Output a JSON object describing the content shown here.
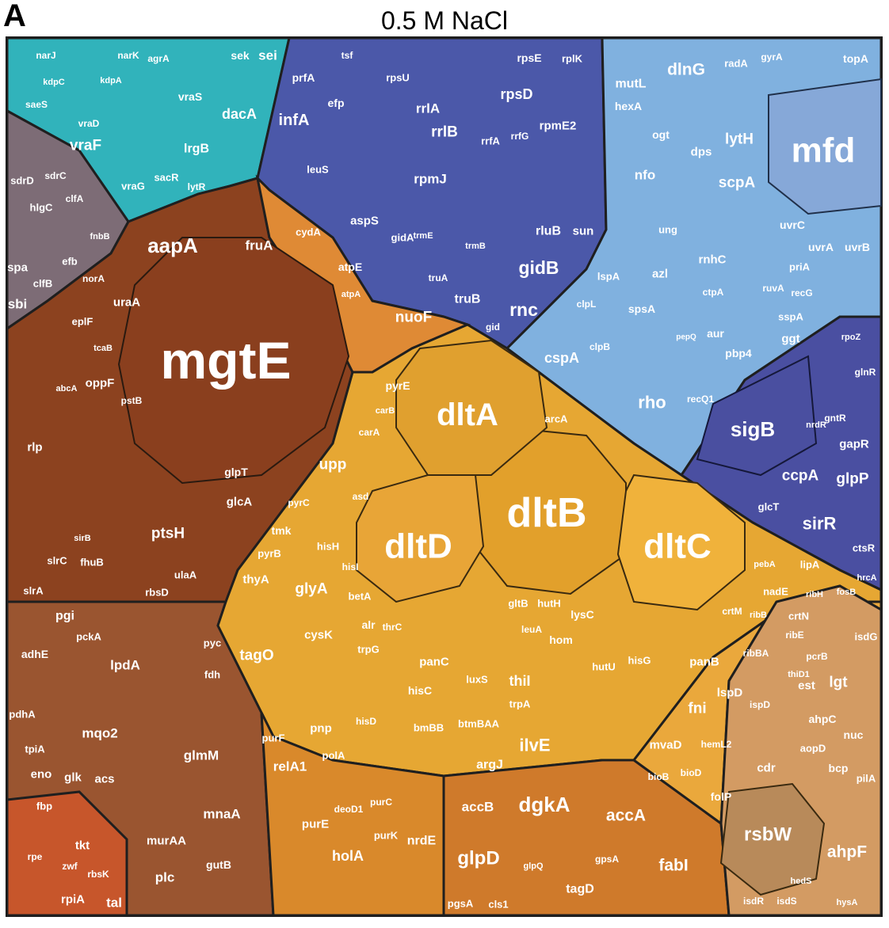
{
  "panel_letter": "A",
  "title": "0.5 M NaCl",
  "colors": {
    "teal": "#2fb7bf",
    "slate": "#7f6e78",
    "navy": "#4a59aa",
    "skyblue": "#7fb0de",
    "darkindigo": "#4a4fa0",
    "rust": "#8a3f1e",
    "brown": "#934c28",
    "orange": "#e08a2e",
    "gold": "#e3a531",
    "tan": "#c89055",
    "amber": "#d98a2a",
    "border": "#2a2a2a"
  },
  "genes": {
    "mgtE": "mgtE",
    "aapA": "aapA",
    "fruA": "fruA",
    "norA": "norA",
    "uraA": "uraA",
    "eplF": "eplF",
    "tcaB": "tcaB",
    "oppF": "oppF",
    "abcA": "abcA",
    "rlp": "rlp",
    "pstB": "pstB",
    "ptsH": "ptsH",
    "glpT": "glpT",
    "glcA": "glcA",
    "slrC": "slrC",
    "fhuB": "fhuB",
    "sirB": "sirB",
    "slrA": "slrA",
    "rbsD": "rbsD",
    "ulaA": "ulaA",
    "pgi": "pgi",
    "adhE": "adhE",
    "pckA": "pckA",
    "lpdA": "lpdA",
    "pyc": "pyc",
    "fdh": "fdh",
    "mqo2": "mqo2",
    "pdhA": "pdhA",
    "tpiA": "tpiA",
    "eno": "eno",
    "glk": "glk",
    "acs": "acs",
    "fbp": "fbp",
    "glmM": "glmM",
    "mnaA": "mnaA",
    "murAA": "murAA",
    "plc": "plc",
    "gutB": "gutB",
    "tkt": "tkt",
    "rpiA": "rpiA",
    "tal": "tal",
    "rpe": "rpe",
    "zwf": "zwf",
    "rbsK": "rbsK",
    "vraF": "vraF",
    "vraS": "vraS",
    "lrgB": "lrgB",
    "narJ": "narJ",
    "narK": "narK",
    "agrA": "agrA",
    "dacA": "dacA",
    "sek": "sek",
    "sei": "sei",
    "vraG": "vraG",
    "sacR": "sacR",
    "lytR": "lytR",
    "kdpC": "kdpC",
    "kdpA": "kdpA",
    "vraD": "vraD",
    "saeS": "saeS",
    "sdrD": "sdrD",
    "sdrC": "sdrC",
    "hlgC": "hlgC",
    "clfA": "clfA",
    "spa": "spa",
    "efb": "efb",
    "clfB": "clfB",
    "sbi": "sbi",
    "fnbB": "fnbB",
    "infA": "infA",
    "prfA": "prfA",
    "efp": "efp",
    "tsf": "tsf",
    "rpsU": "rpsU",
    "rrlA": "rrlA",
    "rrlB": "rrlB",
    "rpsD": "rpsD",
    "rpsE": "rpsE",
    "rplK": "rplK",
    "rpmE2": "rpmE2",
    "rpmJ": "rpmJ",
    "leuS": "leuS",
    "aspS": "aspS",
    "gidA": "gidA",
    "truA": "truA",
    "truB": "truB",
    "gidB": "gidB",
    "rnc": "rnc",
    "rluB": "rluB",
    "sun": "sun",
    "rrfA": "rrfA",
    "rrfG": "rrfG",
    "trmE": "trmE",
    "trmB": "trmB",
    "cydA": "cydA",
    "atpE": "atpE",
    "nuoF": "nuoF",
    "atpA": "atpA",
    "gid": "gid",
    "mutL": "mutL",
    "dlnG": "dlnG",
    "radA": "radA",
    "gyrA": "gyrA",
    "topA": "topA",
    "mfd": "mfd",
    "hexA": "hexA",
    "ogt": "ogt",
    "lytH": "lytH",
    "dps": "dps",
    "nfo": "nfo",
    "scpA": "scpA",
    "uvrC": "uvrC",
    "uvrA": "uvrA",
    "uvrB": "uvrB",
    "ung": "ung",
    "rnhC": "rnhC",
    "priA": "priA",
    "ruvA": "ruvA",
    "recG": "recG",
    "lspA": "lspA",
    "azl": "azl",
    "spsA": "spsA",
    "ctpA": "ctpA",
    "sspA": "sspA",
    "ggt": "ggt",
    "cspA": "cspA",
    "clpL": "clpL",
    "clpB": "clpB",
    "aur": "aur",
    "pbp4": "pbp4",
    "rho": "rho",
    "recQ1": "recQ1",
    "pepQ": "pepQ",
    "sigB": "sigB",
    "ccpA": "ccpA",
    "glpP": "glpP",
    "sirR": "sirR",
    "gapR": "gapR",
    "gntR": "gntR",
    "ctsR": "ctsR",
    "glnR": "glnR",
    "rpoZ": "rpoZ",
    "glcT": "glcT",
    "hrcA": "hrcA",
    "nrdR": "nrdR",
    "dltA": "dltA",
    "dltB": "dltB",
    "dltD": "dltD",
    "dltC": "dltC",
    "upp": "upp",
    "glyA": "glyA",
    "thyA": "thyA",
    "tagO": "tagO",
    "asd": "asd",
    "tmk": "tmk",
    "pyrB": "pyrB",
    "pyrE": "pyrE",
    "pyrC": "pyrC",
    "carB": "carB",
    "carA": "carA",
    "arcA": "arcA",
    "hisH": "hisH",
    "hisI": "hisI",
    "betA": "betA",
    "cysK": "cysK",
    "alr": "alr",
    "thrC": "thrC",
    "trpG": "trpG",
    "panC": "panC",
    "luxS": "luxS",
    "thiI": "thiI",
    "hisC": "hisC",
    "ilvE": "ilvE",
    "argJ": "argJ",
    "trpA": "trpA",
    "hisD": "hisD",
    "bmBB": "bmBB",
    "btmBAA": "btmBAA",
    "lysC": "lysC",
    "hom": "hom",
    "hutH": "hutH",
    "hutU": "hutU",
    "hisG": "hisG",
    "gltB": "gltB",
    "leuA": "leuA",
    "panB": "panB",
    "fni": "fni",
    "lspD": "lspD",
    "ispD": "ispD",
    "mvaD": "mvaD",
    "folP": "folP",
    "bioB": "bioB",
    "bioD": "bioD",
    "hemL2": "hemL2",
    "nadE": "nadE",
    "crtM": "crtM",
    "crtN": "crtN",
    "ribB": "ribB",
    "ribE": "ribE",
    "ribH": "ribH",
    "pebA": "pebA",
    "lipA": "lipA",
    "ribBA": "ribBA",
    "thiD1": "thiD1",
    "relA1": "relA1",
    "pnp": "pnp",
    "purF": "purF",
    "purE": "purE",
    "holA": "holA",
    "nrdE": "nrdE",
    "purK": "purK",
    "polA": "polA",
    "purC": "purC",
    "deoD1": "deoD1",
    "accB": "accB",
    "dgkA": "dgkA",
    "accA": "accA",
    "glpD": "glpD",
    "fabI": "fabI",
    "tagD": "tagD",
    "pgsA": "pgsA",
    "cls1": "cls1",
    "gpsA": "gpsA",
    "glpQ": "glpQ",
    "rsbW": "rsbW",
    "ahpF": "ahpF",
    "ahpC": "ahpC",
    "lgt": "lgt",
    "isdG": "isdG",
    "pcrB": "pcrB",
    "est": "est",
    "nuc": "nuc",
    "aopD": "aopD",
    "bcp": "bcp",
    "pilA": "pilA",
    "cdr": "cdr",
    "fosB": "fosB",
    "isdR": "isdR",
    "isdS": "isdS",
    "hysA": "hysA",
    "hedS": "hedS"
  }
}
